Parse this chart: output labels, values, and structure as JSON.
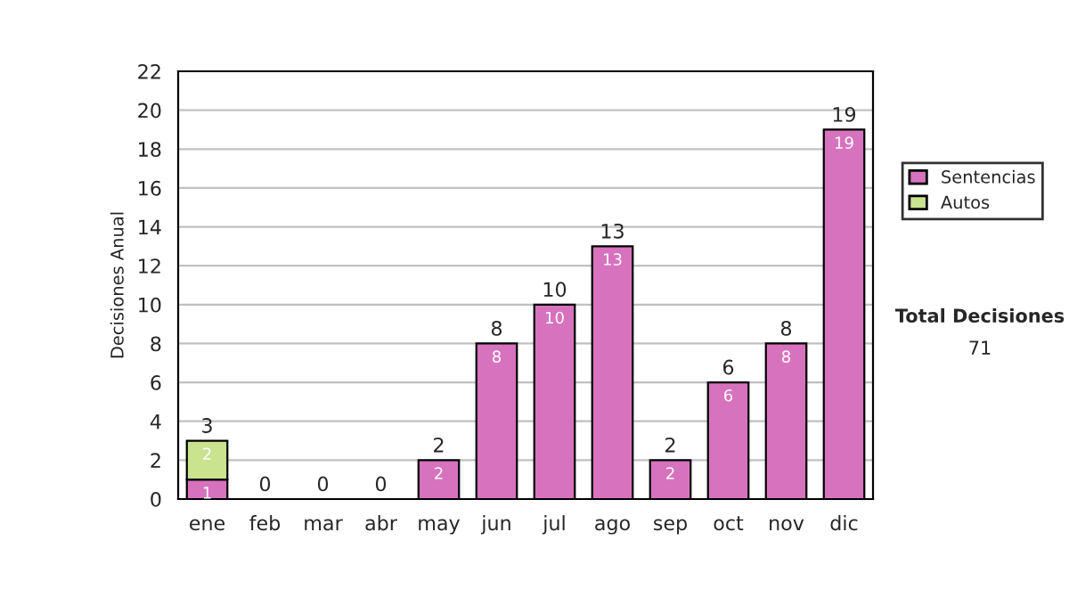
{
  "chart_data": {
    "type": "bar",
    "stacked": true,
    "ylabel": "Decisiones Anual",
    "categories": [
      "ene",
      "feb",
      "mar",
      "abr",
      "may",
      "jun",
      "jul",
      "ago",
      "sep",
      "oct",
      "nov",
      "dic"
    ],
    "series": [
      {
        "name": "Sentencias",
        "color": "#d772bf",
        "values": [
          1,
          0,
          0,
          0,
          2,
          8,
          10,
          13,
          2,
          6,
          8,
          19
        ],
        "value_labels": [
          "1",
          null,
          null,
          null,
          "2",
          "8",
          "10",
          "13",
          "2",
          "6",
          "8",
          "19"
        ]
      },
      {
        "name": "Autos",
        "color": "#c9e38f",
        "values": [
          2,
          0,
          0,
          0,
          0,
          0,
          0,
          0,
          0,
          0,
          0,
          0
        ],
        "value_labels": [
          "2",
          null,
          null,
          null,
          null,
          null,
          null,
          null,
          null,
          null,
          null,
          null
        ]
      }
    ],
    "totals": [
      "3",
      "0",
      "0",
      "0",
      "2",
      "8",
      "10",
      "13",
      "2",
      "6",
      "8",
      "19"
    ],
    "ylim": [
      0,
      22
    ],
    "yticks": [
      0,
      2,
      4,
      6,
      8,
      10,
      12,
      14,
      16,
      18,
      20,
      22
    ],
    "grid": "y",
    "legend": "right",
    "annotations": [
      "Total Decisiones",
      "71"
    ]
  }
}
